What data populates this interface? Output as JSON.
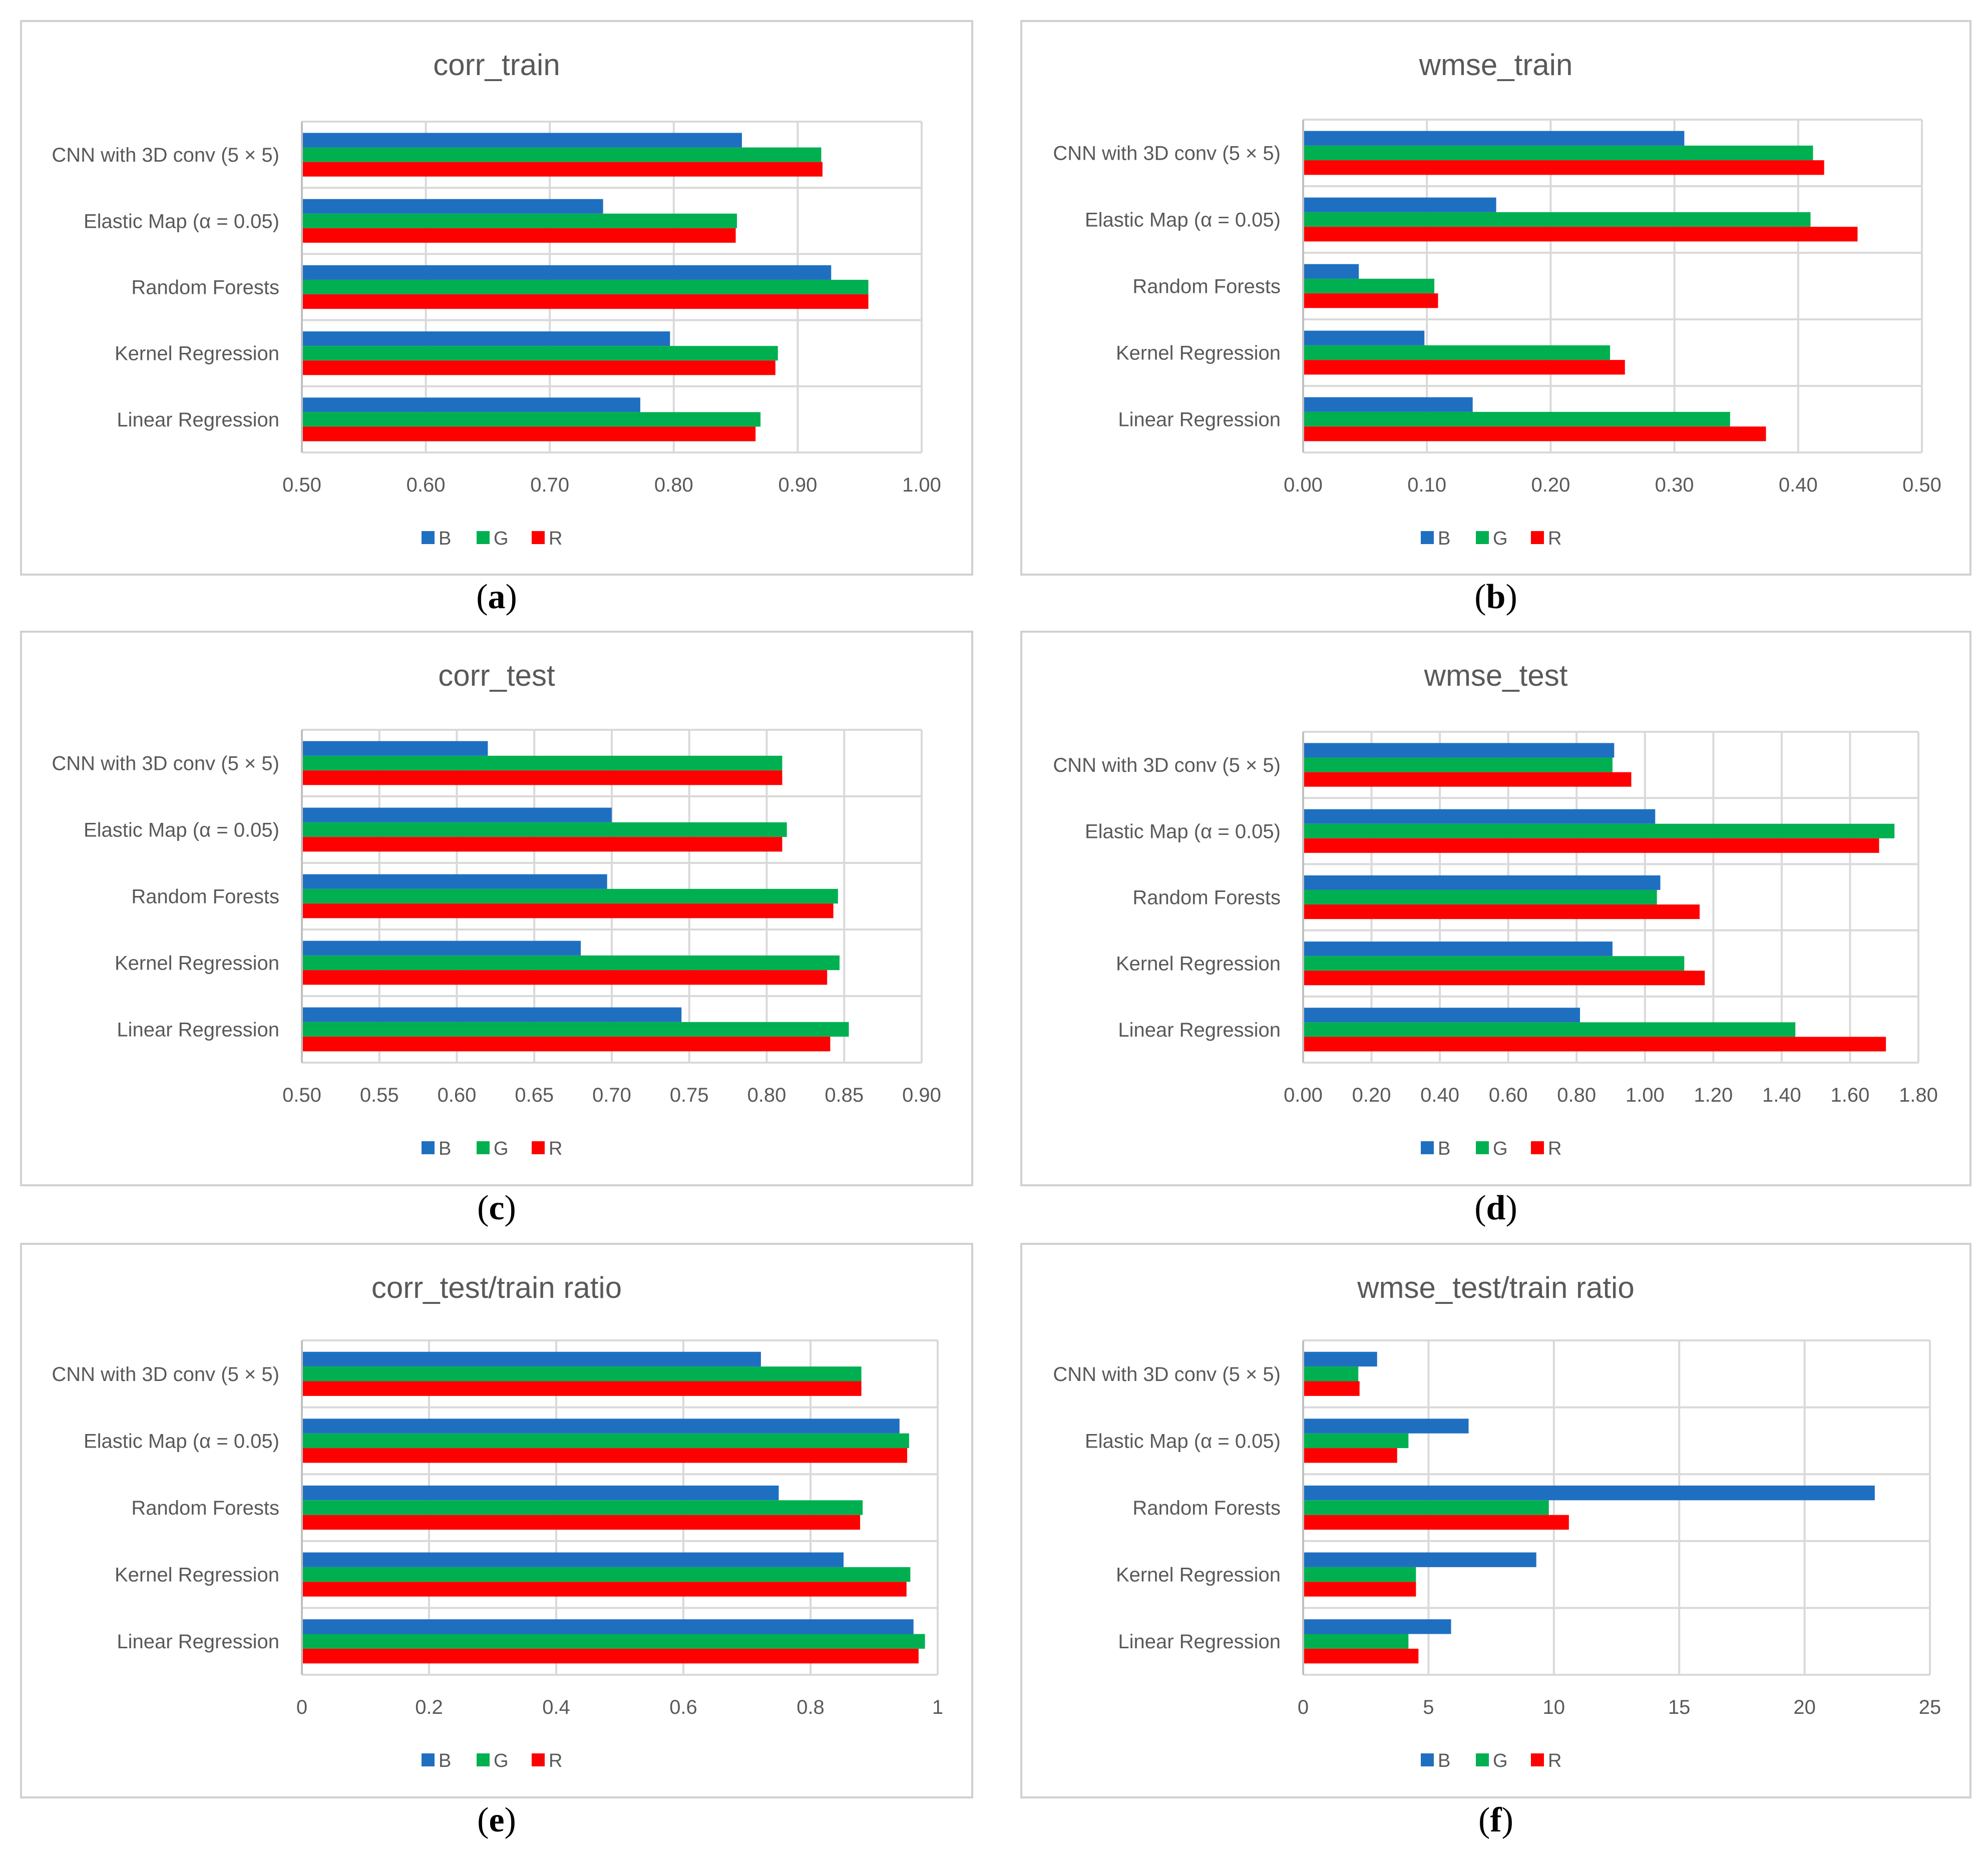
{
  "colors": {
    "B": "#1f6fc1",
    "G": "#00b050",
    "R": "#ff0000",
    "grid": "#d9d9d9",
    "frame": "#d0d0d0"
  },
  "legend": [
    "B",
    "G",
    "R"
  ],
  "chart_data": [
    {
      "id": "a",
      "caption": "a",
      "type": "bar",
      "orientation": "horizontal",
      "title": "corr_train",
      "categories": [
        "CNN with 3D conv (5 × 5)",
        "Elastic Map (α = 0.05)",
        "Random Forests",
        "Kernel Regression",
        "Linear Regression"
      ],
      "xlim": [
        0.5,
        1.0
      ],
      "ticks": [
        "0.50",
        "0.60",
        "0.70",
        "0.80",
        "0.90",
        "1.00"
      ],
      "series": [
        {
          "name": "B",
          "values": [
            0.855,
            0.743,
            0.927,
            0.797,
            0.773
          ]
        },
        {
          "name": "G",
          "values": [
            0.919,
            0.851,
            0.957,
            0.884,
            0.87
          ]
        },
        {
          "name": "R",
          "values": [
            0.92,
            0.85,
            0.957,
            0.882,
            0.866
          ]
        }
      ]
    },
    {
      "id": "b",
      "caption": "b",
      "type": "bar",
      "orientation": "horizontal",
      "title": "wmse_train",
      "categories": [
        "CNN with 3D conv (5 × 5)",
        "Elastic Map (α = 0.05)",
        "Random Forests",
        "Kernel Regression",
        "Linear Regression"
      ],
      "xlim": [
        0.0,
        0.5
      ],
      "ticks": [
        "0.00",
        "0.10",
        "0.20",
        "0.30",
        "0.40",
        "0.50"
      ],
      "series": [
        {
          "name": "B",
          "values": [
            0.308,
            0.156,
            0.045,
            0.098,
            0.137
          ]
        },
        {
          "name": "G",
          "values": [
            0.412,
            0.41,
            0.106,
            0.248,
            0.345
          ]
        },
        {
          "name": "R",
          "values": [
            0.421,
            0.448,
            0.109,
            0.26,
            0.374
          ]
        }
      ]
    },
    {
      "id": "c",
      "caption": "c",
      "type": "bar",
      "orientation": "horizontal",
      "title": "corr_test",
      "categories": [
        "CNN with 3D conv (5 × 5)",
        "Elastic Map (α = 0.05)",
        "Random Forests",
        "Kernel Regression",
        "Linear Regression"
      ],
      "xlim": [
        0.5,
        0.9
      ],
      "ticks": [
        "0.50",
        "0.55",
        "0.60",
        "0.65",
        "0.70",
        "0.75",
        "0.80",
        "0.85",
        "0.90"
      ],
      "series": [
        {
          "name": "B",
          "values": [
            0.62,
            0.7,
            0.697,
            0.68,
            0.745
          ]
        },
        {
          "name": "G",
          "values": [
            0.81,
            0.813,
            0.846,
            0.847,
            0.853
          ]
        },
        {
          "name": "R",
          "values": [
            0.81,
            0.81,
            0.843,
            0.839,
            0.841
          ]
        }
      ]
    },
    {
      "id": "d",
      "caption": "d",
      "type": "bar",
      "orientation": "horizontal",
      "title": "wmse_test",
      "categories": [
        "CNN with 3D conv (5 × 5)",
        "Elastic Map (α = 0.05)",
        "Random Forests",
        "Kernel Regression",
        "Linear Regression"
      ],
      "xlim": [
        0.0,
        1.8
      ],
      "ticks": [
        "0.00",
        "0.20",
        "0.40",
        "0.60",
        "0.80",
        "1.00",
        "1.20",
        "1.40",
        "1.60",
        "1.80"
      ],
      "series": [
        {
          "name": "B",
          "values": [
            0.91,
            1.03,
            1.045,
            0.905,
            0.81
          ]
        },
        {
          "name": "G",
          "values": [
            0.905,
            1.73,
            1.035,
            1.115,
            1.44
          ]
        },
        {
          "name": "R",
          "values": [
            0.96,
            1.685,
            1.16,
            1.175,
            1.705
          ]
        }
      ]
    },
    {
      "id": "e",
      "caption": "e",
      "type": "bar",
      "orientation": "horizontal",
      "title": "corr_test/train ratio",
      "categories": [
        "CNN with 3D conv (5 × 5)",
        "Elastic Map (α = 0.05)",
        "Random Forests",
        "Kernel Regression",
        "Linear Regression"
      ],
      "xlim": [
        0,
        1
      ],
      "ticks": [
        "0",
        "0.2",
        "0.4",
        "0.6",
        "0.8",
        "1"
      ],
      "series": [
        {
          "name": "B",
          "values": [
            0.722,
            0.94,
            0.75,
            0.852,
            0.962
          ]
        },
        {
          "name": "G",
          "values": [
            0.88,
            0.955,
            0.882,
            0.957,
            0.98
          ]
        },
        {
          "name": "R",
          "values": [
            0.88,
            0.952,
            0.878,
            0.951,
            0.97
          ]
        }
      ]
    },
    {
      "id": "f",
      "caption": "f",
      "type": "bar",
      "orientation": "horizontal",
      "title": "wmse_test/train ratio",
      "categories": [
        "CNN with 3D conv (5 × 5)",
        "Elastic Map (α = 0.05)",
        "Random Forests",
        "Kernel Regression",
        "Linear Regression"
      ],
      "xlim": [
        0,
        25
      ],
      "ticks": [
        "0",
        "5",
        "10",
        "15",
        "20",
        "25"
      ],
      "series": [
        {
          "name": "B",
          "values": [
            2.95,
            6.6,
            22.8,
            9.3,
            5.9
          ]
        },
        {
          "name": "G",
          "values": [
            2.2,
            4.2,
            9.8,
            4.5,
            4.2
          ]
        },
        {
          "name": "R",
          "values": [
            2.25,
            3.75,
            10.6,
            4.5,
            4.6
          ]
        }
      ]
    }
  ]
}
